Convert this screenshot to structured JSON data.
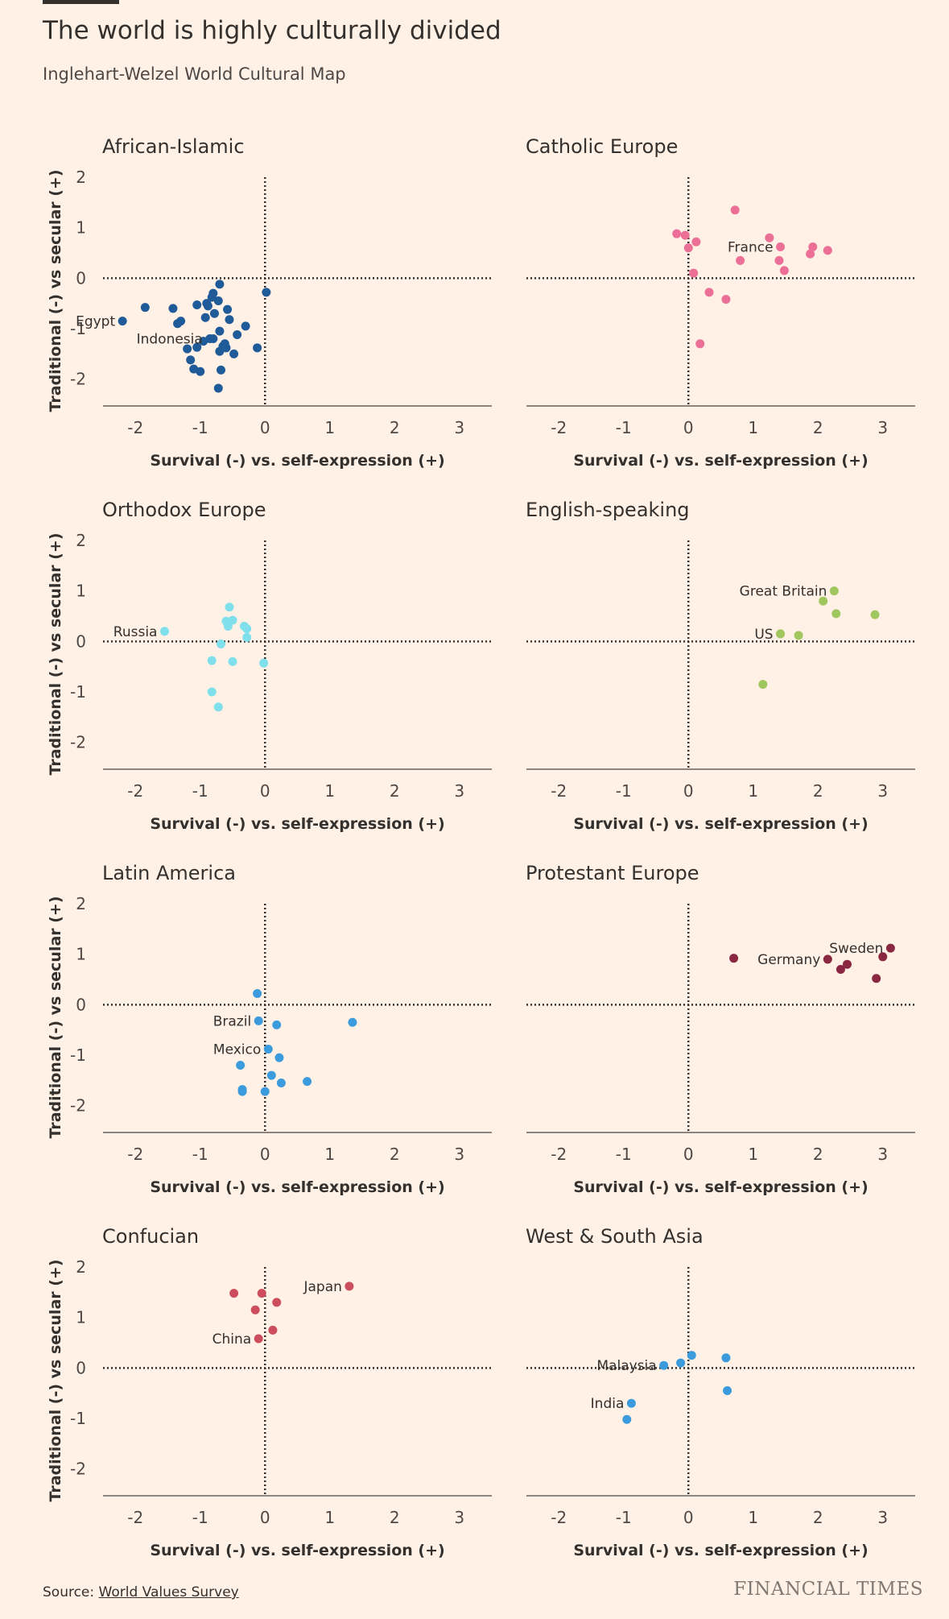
{
  "title": "The world is highly culturally divided",
  "subtitle": "Inglehart-Welzel World Cultural Map",
  "source_label": "Source: ",
  "source_link": "World Values Survey",
  "brand": "FINANCIAL TIMES",
  "chart_data": [
    {
      "type": "scatter",
      "title": "African-Islamic",
      "xlabel": "Survival (-) vs. self-expression (+)",
      "ylabel": "Traditional (-) vs secular (+)",
      "xlim": [
        -2.5,
        3.5
      ],
      "ylim": [
        -2.5,
        2
      ],
      "xticks": [
        "-2",
        "-1",
        "0",
        "1",
        "2",
        "3"
      ],
      "yticks": [
        "2",
        "1",
        "0",
        "-1",
        "-2"
      ],
      "color": "#1f5a99",
      "points": [
        {
          "x": -2.2,
          "y": -0.85,
          "label": "Egypt"
        },
        {
          "x": -1.85,
          "y": -0.58
        },
        {
          "x": -1.42,
          "y": -0.6
        },
        {
          "x": -1.35,
          "y": -0.9
        },
        {
          "x": -1.3,
          "y": -0.85
        },
        {
          "x": -1.2,
          "y": -1.4
        },
        {
          "x": -1.15,
          "y": -1.62
        },
        {
          "x": -1.1,
          "y": -1.8
        },
        {
          "x": -1.05,
          "y": -1.37
        },
        {
          "x": -1.05,
          "y": -0.53
        },
        {
          "x": -1.0,
          "y": -1.85
        },
        {
          "x": -0.95,
          "y": -1.25
        },
        {
          "x": -0.92,
          "y": -0.78
        },
        {
          "x": -0.9,
          "y": -0.5
        },
        {
          "x": -0.88,
          "y": -0.55
        },
        {
          "x": -0.85,
          "y": -1.2,
          "label": "Indonesia"
        },
        {
          "x": -0.82,
          "y": -0.38
        },
        {
          "x": -0.8,
          "y": -0.3
        },
        {
          "x": -0.8,
          "y": -1.2
        },
        {
          "x": -0.78,
          "y": -0.7
        },
        {
          "x": -0.72,
          "y": -0.45
        },
        {
          "x": -0.7,
          "y": -0.12
        },
        {
          "x": -0.7,
          "y": -1.05
        },
        {
          "x": -0.7,
          "y": -1.45
        },
        {
          "x": -0.68,
          "y": -1.82
        },
        {
          "x": -0.65,
          "y": -1.35
        },
        {
          "x": -0.62,
          "y": -1.3
        },
        {
          "x": -0.6,
          "y": -1.38
        },
        {
          "x": -0.58,
          "y": -0.62
        },
        {
          "x": -0.55,
          "y": -0.82
        },
        {
          "x": -0.72,
          "y": -2.18
        },
        {
          "x": -0.48,
          "y": -1.5
        },
        {
          "x": -0.43,
          "y": -1.12
        },
        {
          "x": -0.3,
          "y": -0.95
        },
        {
          "x": -0.12,
          "y": -1.38
        },
        {
          "x": 0.02,
          "y": -0.28
        }
      ]
    },
    {
      "type": "scatter",
      "title": "Catholic Europe",
      "xlabel": "Survival (-) vs. self-expression (+)",
      "ylabel": "",
      "xlim": [
        -2.5,
        3.5
      ],
      "ylim": [
        -2.5,
        2
      ],
      "xticks": [
        "-2",
        "-1",
        "0",
        "1",
        "2",
        "3"
      ],
      "yticks": [],
      "color": "#eb6f96",
      "points": [
        {
          "x": -0.18,
          "y": 0.88
        },
        {
          "x": -0.05,
          "y": 0.85
        },
        {
          "x": 0.0,
          "y": 0.6
        },
        {
          "x": 0.08,
          "y": 0.1
        },
        {
          "x": 0.12,
          "y": 0.72
        },
        {
          "x": 0.18,
          "y": -1.3
        },
        {
          "x": 0.32,
          "y": -0.28
        },
        {
          "x": 0.58,
          "y": -0.42
        },
        {
          "x": 0.72,
          "y": 1.35
        },
        {
          "x": 0.8,
          "y": 0.35
        },
        {
          "x": 1.25,
          "y": 0.8
        },
        {
          "x": 1.4,
          "y": 0.35
        },
        {
          "x": 1.42,
          "y": 0.62,
          "label": "France"
        },
        {
          "x": 1.48,
          "y": 0.15
        },
        {
          "x": 1.88,
          "y": 0.48
        },
        {
          "x": 1.92,
          "y": 0.62
        },
        {
          "x": 2.15,
          "y": 0.55
        }
      ]
    },
    {
      "type": "scatter",
      "title": "Orthodox Europe",
      "xlabel": "Survival (-) vs. self-expression (+)",
      "ylabel": "Traditional (-) vs secular (+)",
      "xlim": [
        -2.5,
        3.5
      ],
      "ylim": [
        -2.5,
        2
      ],
      "xticks": [
        "-2",
        "-1",
        "0",
        "1",
        "2",
        "3"
      ],
      "yticks": [
        "2",
        "1",
        "0",
        "-1",
        "-2"
      ],
      "color": "#7fe0ec",
      "points": [
        {
          "x": -1.55,
          "y": 0.2,
          "label": "Russia"
        },
        {
          "x": -0.82,
          "y": -0.38
        },
        {
          "x": -0.82,
          "y": -1.0
        },
        {
          "x": -0.72,
          "y": -1.3
        },
        {
          "x": -0.68,
          "y": -0.05
        },
        {
          "x": -0.6,
          "y": 0.4
        },
        {
          "x": -0.57,
          "y": 0.3
        },
        {
          "x": -0.55,
          "y": 0.68
        },
        {
          "x": -0.5,
          "y": 0.42
        },
        {
          "x": -0.5,
          "y": -0.4
        },
        {
          "x": -0.32,
          "y": 0.3
        },
        {
          "x": -0.28,
          "y": 0.25
        },
        {
          "x": -0.28,
          "y": 0.08
        },
        {
          "x": -0.02,
          "y": -0.43
        }
      ]
    },
    {
      "type": "scatter",
      "title": "English-speaking",
      "xlabel": "Survival (-) vs. self-expression (+)",
      "ylabel": "",
      "xlim": [
        -2.5,
        3.5
      ],
      "ylim": [
        -2.5,
        2
      ],
      "xticks": [
        "-2",
        "-1",
        "0",
        "1",
        "2",
        "3"
      ],
      "yticks": [],
      "color": "#a0c65e",
      "points": [
        {
          "x": 1.15,
          "y": -0.85
        },
        {
          "x": 1.42,
          "y": 0.15,
          "label": "US"
        },
        {
          "x": 1.7,
          "y": 0.12
        },
        {
          "x": 2.08,
          "y": 0.8
        },
        {
          "x": 2.25,
          "y": 1.0,
          "label": "Great Britain"
        },
        {
          "x": 2.28,
          "y": 0.55
        },
        {
          "x": 2.88,
          "y": 0.53
        }
      ]
    },
    {
      "type": "scatter",
      "title": "Latin America",
      "xlabel": "Survival (-) vs. self-expression (+)",
      "ylabel": "Traditional (-) vs secular (+)",
      "xlim": [
        -2.5,
        3.5
      ],
      "ylim": [
        -2.5,
        2
      ],
      "xticks": [
        "-2",
        "-1",
        "0",
        "1",
        "2",
        "3"
      ],
      "yticks": [
        "2",
        "1",
        "0",
        "-1",
        "-2"
      ],
      "color": "#3b9bdc",
      "points": [
        {
          "x": -0.38,
          "y": -1.2
        },
        {
          "x": -0.35,
          "y": -1.68
        },
        {
          "x": -0.35,
          "y": -1.72
        },
        {
          "x": -0.12,
          "y": 0.22
        },
        {
          "x": -0.1,
          "y": -0.32,
          "label": "Brazil"
        },
        {
          "x": 0.0,
          "y": -1.72
        },
        {
          "x": 0.05,
          "y": -0.88,
          "label": "Mexico"
        },
        {
          "x": 0.1,
          "y": -1.4
        },
        {
          "x": 0.18,
          "y": -0.4
        },
        {
          "x": 0.22,
          "y": -1.05
        },
        {
          "x": 0.25,
          "y": -1.55
        },
        {
          "x": 0.65,
          "y": -1.52
        },
        {
          "x": 1.35,
          "y": -0.35
        }
      ]
    },
    {
      "type": "scatter",
      "title": "Protestant Europe",
      "xlabel": "Survival (-) vs. self-expression (+)",
      "ylabel": "",
      "xlim": [
        -2.5,
        3.5
      ],
      "ylim": [
        -2.5,
        2
      ],
      "xticks": [
        "-2",
        "-1",
        "0",
        "1",
        "2",
        "3"
      ],
      "yticks": [],
      "color": "#8a2842",
      "points": [
        {
          "x": 0.7,
          "y": 0.92
        },
        {
          "x": 2.15,
          "y": 0.9,
          "label": "Germany"
        },
        {
          "x": 2.35,
          "y": 0.7
        },
        {
          "x": 2.45,
          "y": 0.8
        },
        {
          "x": 2.9,
          "y": 0.52
        },
        {
          "x": 3.0,
          "y": 0.95
        },
        {
          "x": 3.12,
          "y": 1.12,
          "label": "Sweden"
        }
      ]
    },
    {
      "type": "scatter",
      "title": "Confucian",
      "xlabel": "Survival (-) vs. self-expression (+)",
      "ylabel": "Traditional (-) vs secular (+)",
      "xlim": [
        -2.5,
        3.5
      ],
      "ylim": [
        -2.5,
        2
      ],
      "xticks": [
        "-2",
        "-1",
        "0",
        "1",
        "2",
        "3"
      ],
      "yticks": [
        "2",
        "1",
        "0",
        "-1",
        "-2"
      ],
      "color": "#cc4d5c",
      "points": [
        {
          "x": -0.48,
          "y": 1.48
        },
        {
          "x": -0.15,
          "y": 1.15
        },
        {
          "x": -0.1,
          "y": 0.58,
          "label": "China"
        },
        {
          "x": -0.05,
          "y": 1.48
        },
        {
          "x": 0.12,
          "y": 0.75
        },
        {
          "x": 0.18,
          "y": 1.3
        },
        {
          "x": 1.3,
          "y": 1.62,
          "label": "Japan"
        }
      ]
    },
    {
      "type": "scatter",
      "title": "West & South Asia",
      "xlabel": "Survival (-) vs. self-expression (+)",
      "ylabel": "",
      "xlim": [
        -2.5,
        3.5
      ],
      "ylim": [
        -2.5,
        2
      ],
      "xticks": [
        "-2",
        "-1",
        "0",
        "1",
        "2",
        "3"
      ],
      "yticks": [],
      "color": "#3b9bdc",
      "points": [
        {
          "x": -0.95,
          "y": -1.02
        },
        {
          "x": -0.88,
          "y": -0.7,
          "label": "India"
        },
        {
          "x": -0.38,
          "y": 0.05,
          "label": "Malaysia"
        },
        {
          "x": -0.12,
          "y": 0.1
        },
        {
          "x": 0.05,
          "y": 0.25
        },
        {
          "x": 0.58,
          "y": 0.2
        },
        {
          "x": 0.6,
          "y": -0.45
        }
      ]
    }
  ]
}
